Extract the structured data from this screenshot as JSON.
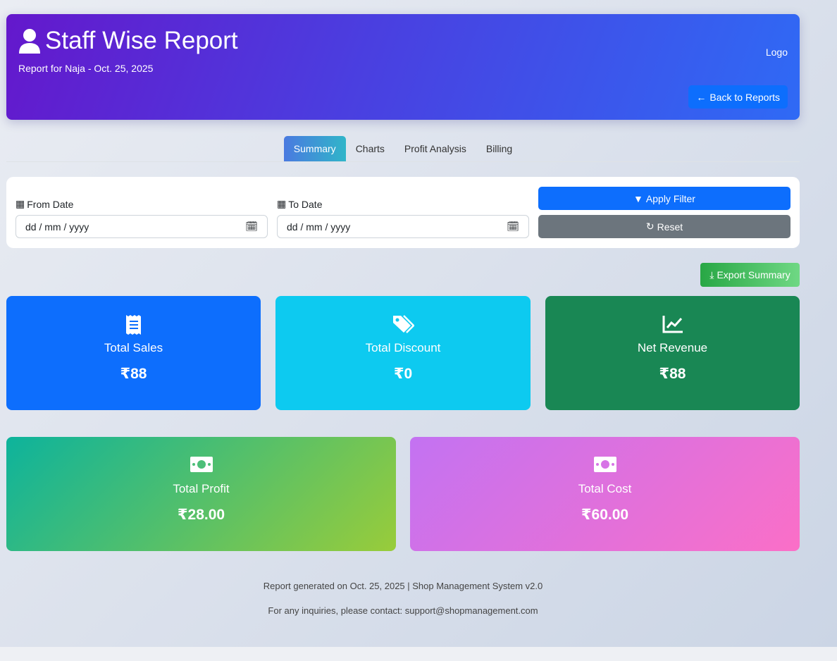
{
  "header": {
    "title": "Staff Wise Report",
    "subtitle": "Report for Naja - Oct. 25, 2025",
    "logo": "Logo",
    "back_label": "Back to Reports"
  },
  "tabs": [
    {
      "label": "Summary",
      "active": true
    },
    {
      "label": "Charts"
    },
    {
      "label": "Profit Analysis"
    },
    {
      "label": "Billing"
    }
  ],
  "filter": {
    "from_label": "From Date",
    "from_placeholder": "dd / mm / yyyy",
    "to_label": "To Date",
    "to_placeholder": "dd / mm / yyyy",
    "apply_label": "Apply Filter",
    "reset_label": "Reset"
  },
  "export_label": "Export Summary",
  "cards": [
    {
      "name": "Total Sales",
      "value": "₹88",
      "icon": "receipt-icon",
      "color": "#0d6efd"
    },
    {
      "name": "Total Discount",
      "value": "₹0",
      "icon": "tags-icon",
      "color": "#0dcaf0"
    },
    {
      "name": "Net Revenue",
      "value": "₹88",
      "icon": "chart-line-icon",
      "color": "#198754"
    },
    {
      "name": "Total Profit",
      "value": "₹28.00",
      "icon": "money-bill-icon",
      "color": "#11b39a"
    },
    {
      "name": "Total Cost",
      "value": "₹60.00",
      "icon": "money-bill-icon",
      "color": "#c96ff0"
    }
  ],
  "footer": {
    "line1": "Report generated on Oct. 25, 2025 | Shop Management System v2.0",
    "line2": "For any inquiries, please contact: support@shopmanagement.com"
  }
}
